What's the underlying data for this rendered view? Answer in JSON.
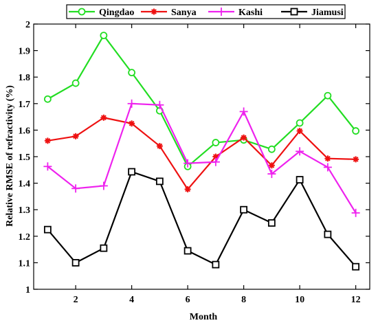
{
  "chart_data": {
    "type": "line",
    "xlabel": "Month",
    "ylabel": "Relative RMSE of refractivity (%)",
    "xlim": [
      0.5,
      12.5
    ],
    "ylim": [
      1,
      2
    ],
    "xticks": [
      "2",
      "4",
      "6",
      "8",
      "10",
      "12"
    ],
    "yticks": [
      "1",
      "1.1",
      "1.2",
      "1.3",
      "1.4",
      "1.5",
      "1.6",
      "1.7",
      "1.8",
      "1.9",
      "2"
    ],
    "legend_position": "top",
    "grid": false,
    "x": [
      1,
      2,
      3,
      4,
      5,
      6,
      7,
      8,
      9,
      10,
      11,
      12
    ],
    "series": [
      {
        "name": "Qingdao",
        "color": "#22dd22",
        "marker": "circle",
        "values": [
          1.717,
          1.777,
          1.957,
          1.817,
          1.673,
          1.463,
          1.553,
          1.563,
          1.528,
          1.627,
          1.73,
          1.597
        ]
      },
      {
        "name": "Sanya",
        "color": "#ee1111",
        "marker": "asterisk",
        "values": [
          1.56,
          1.577,
          1.647,
          1.625,
          1.54,
          1.377,
          1.5,
          1.572,
          1.467,
          1.597,
          1.493,
          1.49
        ]
      },
      {
        "name": "Kashi",
        "color": "#ee22ee",
        "marker": "plus",
        "values": [
          1.463,
          1.38,
          1.39,
          1.7,
          1.695,
          1.475,
          1.48,
          1.67,
          1.435,
          1.52,
          1.46,
          1.288
        ]
      },
      {
        "name": "Jiamusi",
        "color": "#000000",
        "marker": "square",
        "values": [
          1.225,
          1.1,
          1.155,
          1.443,
          1.407,
          1.145,
          1.093,
          1.3,
          1.25,
          1.413,
          1.207,
          1.085
        ]
      }
    ]
  }
}
